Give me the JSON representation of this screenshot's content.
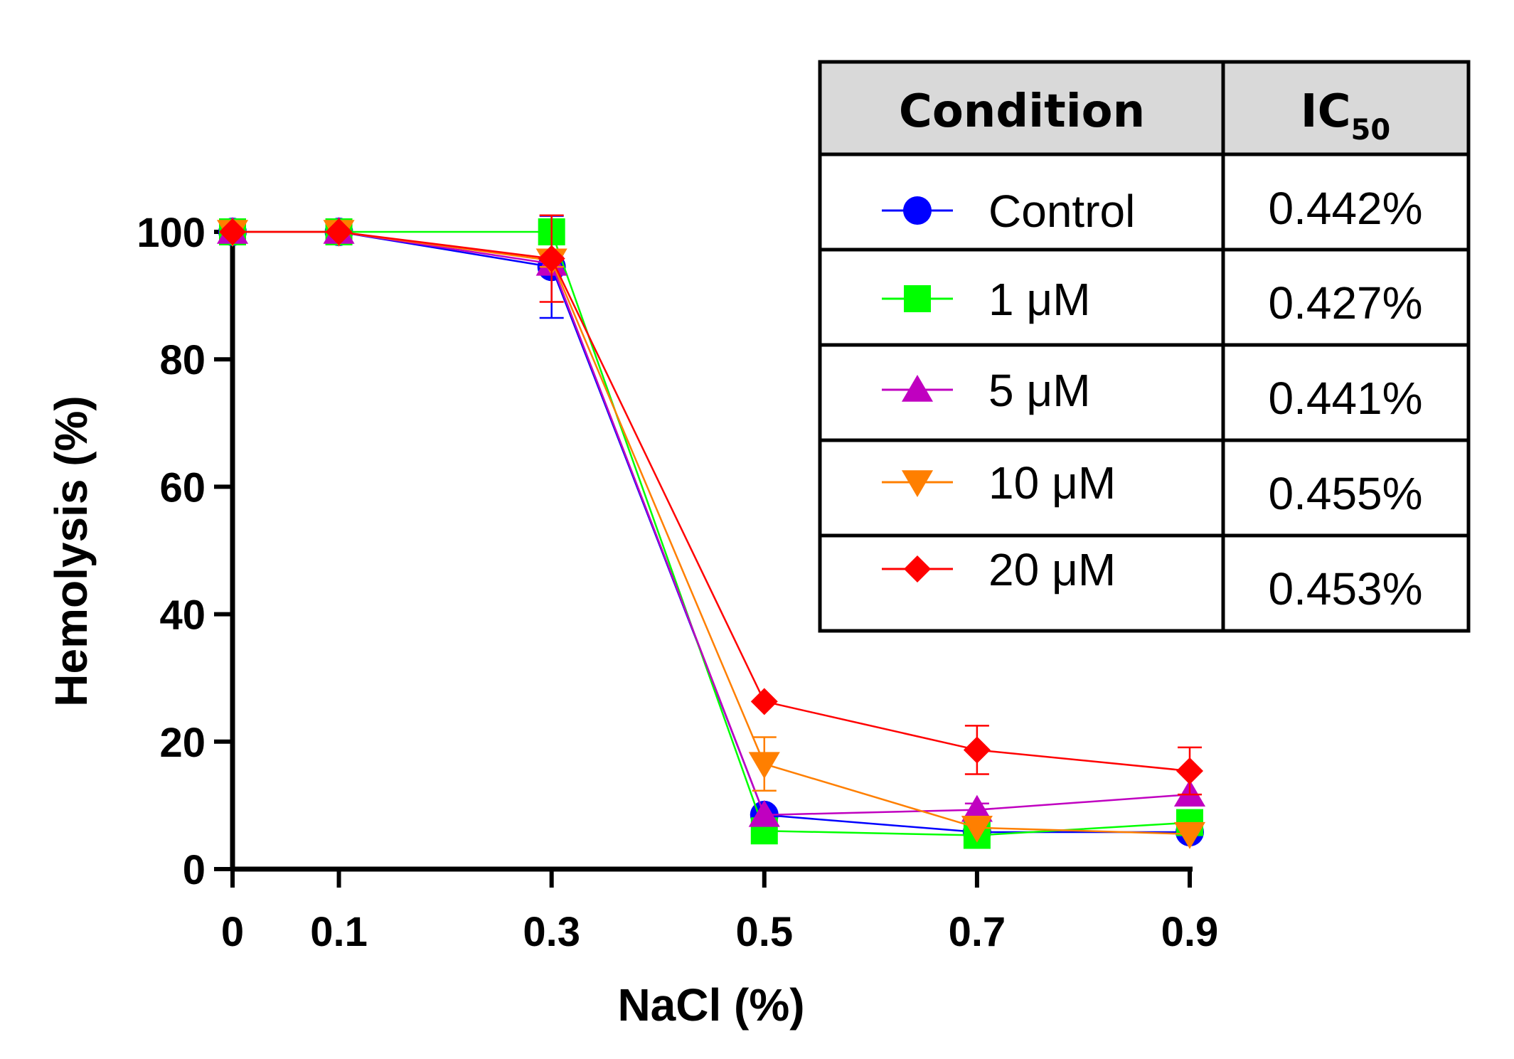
{
  "chart_data": {
    "type": "line",
    "title": "",
    "xlabel": "NaCl (%)",
    "ylabel": "Hemolysis (%)",
    "x": [
      0,
      0.1,
      0.3,
      0.5,
      0.7,
      0.9
    ],
    "x_tick_labels": [
      "0",
      "0.1",
      "0.3",
      "0.5",
      "0.7",
      "0.9"
    ],
    "xlim": [
      0,
      0.9
    ],
    "ylim": [
      0,
      100
    ],
    "y_ticks": [
      0,
      20,
      40,
      60,
      80,
      100
    ],
    "grid": false,
    "series": [
      {
        "name": "Control",
        "color": "#0000FF",
        "marker": "circle",
        "values": [
          100,
          100,
          94.5,
          8.5,
          5.8,
          5.8
        ],
        "errors": [
          0,
          0,
          8,
          1,
          1,
          1
        ]
      },
      {
        "name": "1 μM",
        "color": "#00FF00",
        "marker": "square",
        "values": [
          100,
          100,
          100,
          6.0,
          5.3,
          7.3
        ],
        "errors": [
          0,
          0,
          0,
          0.5,
          0.5,
          0.5
        ]
      },
      {
        "name": "5 μM",
        "color": "#C000C0",
        "marker": "triangle-up",
        "values": [
          100,
          100,
          95,
          8.5,
          9.3,
          11.7
        ],
        "errors": [
          0,
          0,
          1,
          0.5,
          1,
          0.7
        ]
      },
      {
        "name": "10 μM",
        "color": "#FF7F00",
        "marker": "triangle-down",
        "values": [
          100,
          100,
          95.5,
          16.5,
          6.5,
          5.5
        ],
        "errors": [
          0,
          0,
          1,
          4.2,
          0.5,
          0.5
        ]
      },
      {
        "name": "20 μM",
        "color": "#FF0000",
        "marker": "diamond",
        "values": [
          100,
          100,
          95.8,
          26.3,
          18.7,
          15.4
        ],
        "errors": [
          0,
          0,
          6.8,
          0.5,
          3.8,
          3.7
        ]
      }
    ],
    "legend_table": {
      "position": "top-right",
      "header_condition": "Condition",
      "header_ic": "IC",
      "header_ic_sub": "50",
      "rows": [
        {
          "condition": "Control",
          "ic50": "0.442%"
        },
        {
          "condition": "1 μM",
          "ic50": "0.427%"
        },
        {
          "condition": "5 μM",
          "ic50": "0.441%"
        },
        {
          "condition": "10 μM",
          "ic50": "0.455%"
        },
        {
          "condition": "20 μM",
          "ic50": "0.453%"
        }
      ]
    }
  }
}
